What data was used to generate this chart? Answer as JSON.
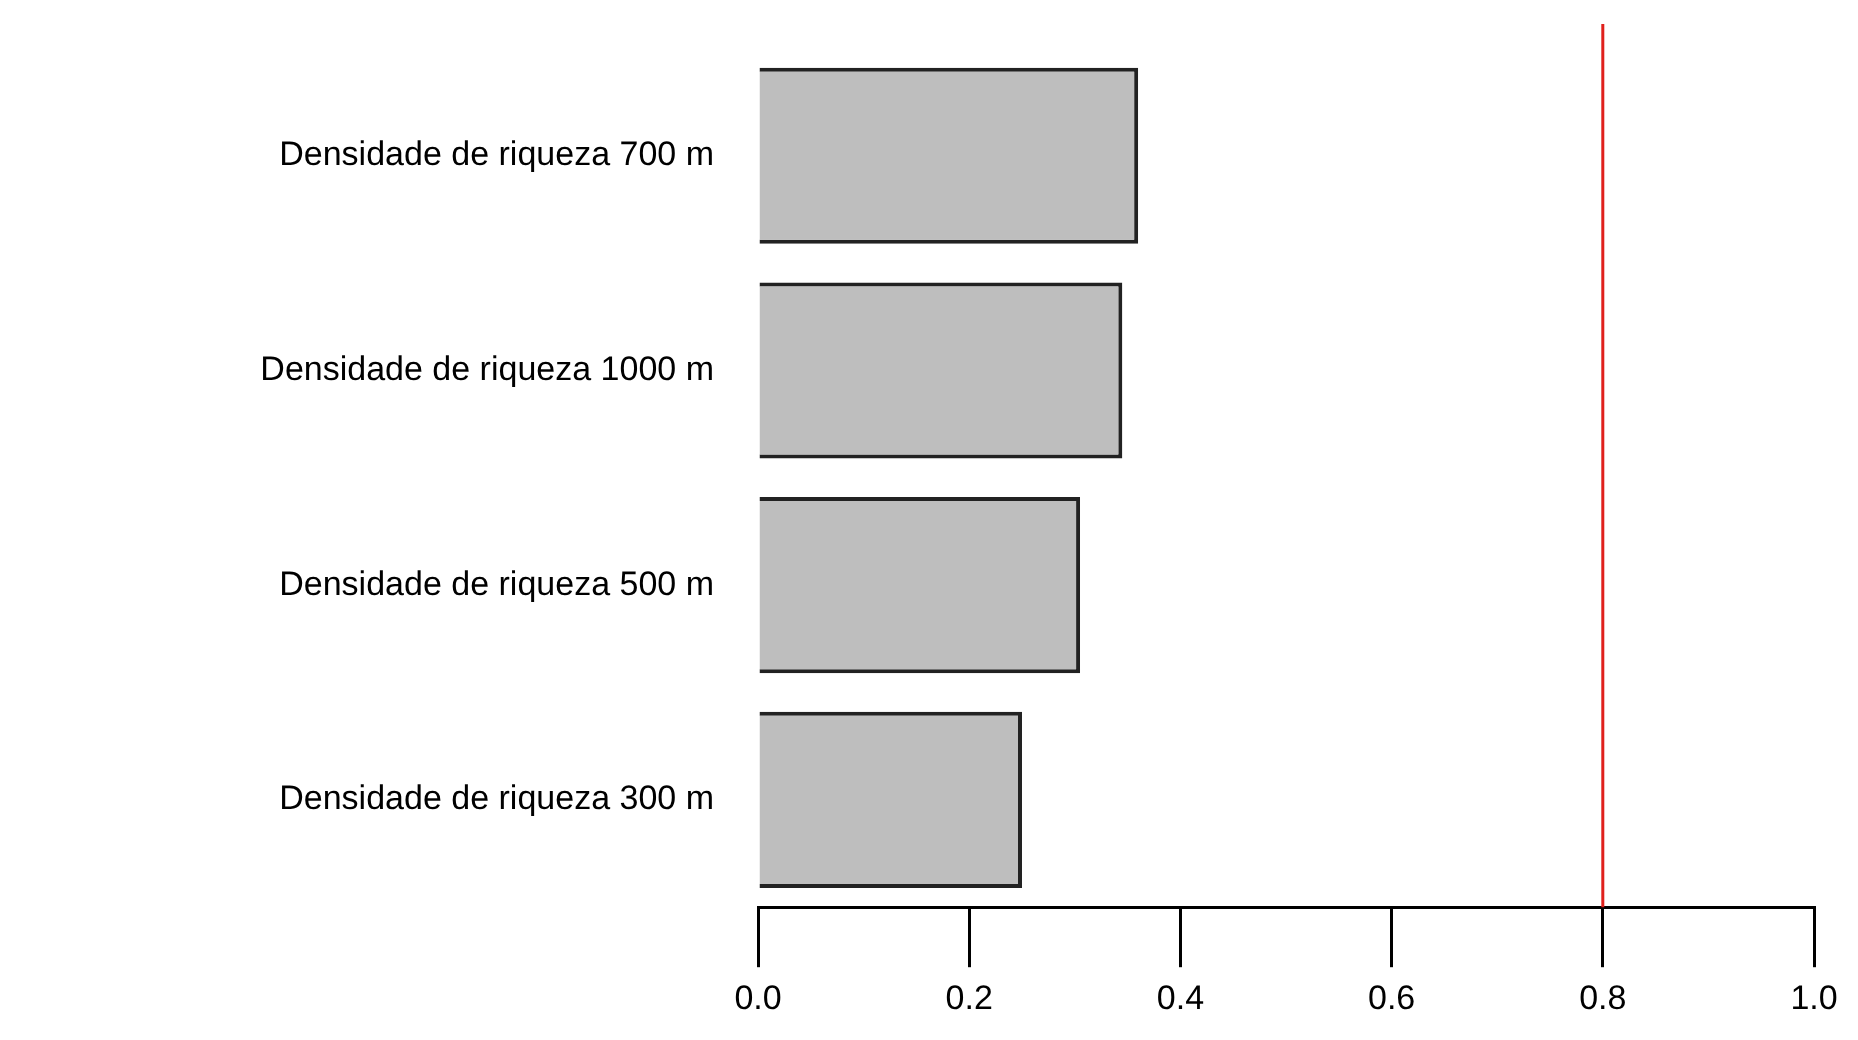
{
  "chart_data": {
    "type": "bar",
    "orientation": "horizontal",
    "categories": [
      "Densidade de riqueza 700 m",
      "Densidade de riqueza 1000 m",
      "Densidade de riqueza 500 m",
      "Densidade de riqueza 300 m"
    ],
    "values": [
      0.36,
      0.345,
      0.305,
      0.25
    ],
    "color": "#bebebe",
    "xlim": [
      0,
      1
    ],
    "xticks": [
      {
        "value": 0,
        "label": "0.0"
      },
      {
        "value": 0.2,
        "label": "0.2"
      },
      {
        "value": 0.4,
        "label": "0.4"
      },
      {
        "value": 0.6,
        "label": "0.6"
      },
      {
        "value": 0.8,
        "label": "0.8"
      },
      {
        "value": 1,
        "label": "1.0"
      }
    ],
    "ref_lines": [
      {
        "axis": "x",
        "value": 0.8,
        "color": "#e0201c"
      }
    ],
    "grid": false,
    "legend": false
  }
}
